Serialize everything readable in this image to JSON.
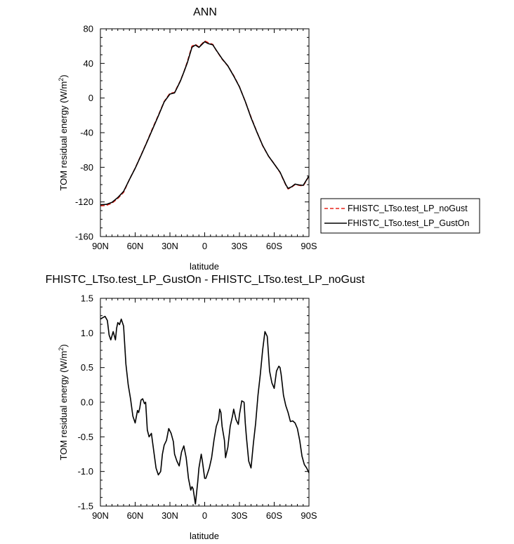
{
  "colors": {
    "noGust": "#e8251b",
    "gustOn": "#000000",
    "frame": "#000000"
  },
  "chart_data": [
    {
      "type": "line",
      "title": "ANN",
      "xlabel": "latitude",
      "ylabel": "TOM residual energy (W/m",
      "ylabel_sup": "2",
      "ylabel_close": ")",
      "xlim": [
        90,
        -90
      ],
      "ylim": [
        -160,
        80
      ],
      "x_ticks": [
        90,
        60,
        30,
        0,
        -30,
        -60,
        -90
      ],
      "x_tick_labels": [
        "90N",
        "60N",
        "30N",
        "0",
        "30S",
        "60S",
        "90S"
      ],
      "y_ticks": [
        -160,
        -120,
        -80,
        -40,
        0,
        40,
        80
      ],
      "y_tick_labels": [
        "-160",
        "-120",
        "-80",
        "-40",
        "0",
        "40",
        "80"
      ],
      "legend": {
        "position": "right",
        "entries": [
          "FHISTC_LTso.test_LP_noGust",
          "FHISTC_LTso.test_LP_GustOn"
        ]
      },
      "series": [
        {
          "name": "FHISTC_LTso.test_LP_noGust",
          "style": "dashed",
          "x": [
            90,
            85,
            80,
            75,
            70,
            65,
            60,
            55,
            50,
            45,
            40,
            35,
            30,
            26,
            24,
            21,
            18,
            15,
            11,
            8,
            5,
            0,
            -3,
            -7,
            -10,
            -15,
            -20,
            -25,
            -30,
            -35,
            -40,
            -45,
            -50,
            -55,
            -60,
            -65,
            -70,
            -72,
            -75,
            -78,
            -82,
            -85,
            -88,
            -90
          ],
          "y": [
            -124.5,
            -124,
            -121.5,
            -116,
            -109,
            -94,
            -81,
            -66,
            -51,
            -35,
            -20,
            -4,
            5.5,
            6.5,
            12,
            20,
            30,
            42,
            60,
            62,
            59,
            66,
            64,
            62,
            55,
            45,
            37,
            26,
            13,
            -4,
            -22,
            -39,
            -55,
            -67,
            -76,
            -86,
            -100.5,
            -105,
            -103,
            -100,
            -101,
            -101.5,
            -95,
            -90
          ]
        },
        {
          "name": "FHISTC_LTso.test_LP_GustOn",
          "style": "solid",
          "x": [
            90,
            85,
            80,
            75,
            70,
            65,
            60,
            55,
            50,
            45,
            40,
            35,
            30,
            26,
            24,
            21,
            18,
            15,
            11,
            8,
            5,
            0,
            -3,
            -7,
            -10,
            -15,
            -20,
            -25,
            -30,
            -35,
            -40,
            -45,
            -50,
            -55,
            -60,
            -65,
            -70,
            -72,
            -75,
            -78,
            -82,
            -85,
            -88,
            -90
          ],
          "y": [
            -123.3,
            -122.9,
            -120.4,
            -114.9,
            -107.9,
            -94.2,
            -81.2,
            -66.4,
            -51.4,
            -35.9,
            -20.6,
            -4.5,
            4.6,
            6.0,
            11.3,
            19.7,
            29.9,
            40.8,
            58.7,
            61.2,
            58.5,
            65.1,
            62.9,
            61.5,
            55.3,
            45.4,
            37.2,
            25.4,
            12.9,
            -3.9,
            -22.7,
            -39.3,
            -54.7,
            -67.0,
            -76.2,
            -85.6,
            -100.0,
            -104.4,
            -102.5,
            -99.4,
            -100.5,
            -100.9,
            -94.4,
            -90.0
          ]
        }
      ]
    },
    {
      "type": "line",
      "title": "FHISTC_LTso.test_LP_GustOn - FHISTC_LTso.test_LP_noGust",
      "xlabel": "latitude",
      "ylabel": "TOM residual energy (W/m",
      "ylabel_sup": "2",
      "ylabel_close": ")",
      "xlim": [
        90,
        -90
      ],
      "ylim": [
        -1.5,
        1.5
      ],
      "x_ticks": [
        90,
        60,
        30,
        0,
        -30,
        -60,
        -90
      ],
      "x_tick_labels": [
        "90N",
        "60N",
        "30N",
        "0",
        "30S",
        "60S",
        "90S"
      ],
      "y_ticks": [
        -1.5,
        -1.0,
        -0.5,
        0.0,
        0.5,
        1.0,
        1.5
      ],
      "y_tick_labels": [
        "-1.5",
        "-1.0",
        "-0.5",
        "0.0",
        "0.5",
        "1.0",
        "1.5"
      ],
      "series": [
        {
          "name": "FHISTC_LTso.test_LP_GustOn - FHISTC_LTso.test_LP_noGust",
          "x": [
            90,
            88,
            86,
            84,
            82.5,
            81,
            79,
            77,
            76,
            75,
            73.5,
            72,
            70,
            68,
            66,
            64,
            62,
            60,
            58,
            57,
            56,
            55,
            53.5,
            52,
            51,
            49.5,
            48,
            46,
            44,
            42,
            40,
            38,
            36.5,
            35,
            33,
            31,
            29,
            27,
            26,
            24,
            22,
            20,
            18,
            16,
            15,
            14,
            12,
            11,
            10,
            8,
            6,
            5,
            3,
            2,
            0,
            -1,
            -2,
            -4,
            -6,
            -8,
            -10,
            -12,
            -13,
            -14,
            -15,
            -17,
            -18,
            -20,
            -22,
            -24,
            -25,
            -27,
            -29,
            -30,
            -32,
            -34,
            -35,
            -36,
            -38,
            -40,
            -42,
            -44,
            -46,
            -48,
            -50,
            -52,
            -54,
            -55,
            -56,
            -58,
            -60,
            -62,
            -64,
            -65,
            -66,
            -67,
            -68,
            -70,
            -72,
            -74,
            -76,
            -78,
            -80,
            -82,
            -84,
            -86,
            -88,
            -90
          ],
          "y": [
            1.2,
            1.22,
            1.24,
            1.18,
            0.97,
            0.9,
            1.02,
            0.9,
            1.07,
            1.15,
            1.12,
            1.2,
            1.1,
            0.55,
            0.25,
            0.05,
            -0.2,
            -0.3,
            -0.12,
            -0.15,
            -0.08,
            0.03,
            0.05,
            -0.02,
            0.0,
            -0.4,
            -0.5,
            -0.45,
            -0.7,
            -0.95,
            -1.05,
            -1.0,
            -0.75,
            -0.62,
            -0.55,
            -0.38,
            -0.45,
            -0.57,
            -0.75,
            -0.85,
            -0.92,
            -0.72,
            -0.63,
            -0.8,
            -0.95,
            -1.1,
            -1.27,
            -1.22,
            -1.25,
            -1.47,
            -1.15,
            -0.95,
            -0.75,
            -0.85,
            -1.1,
            -1.1,
            -1.05,
            -0.95,
            -0.8,
            -0.55,
            -0.35,
            -0.25,
            -0.1,
            -0.15,
            -0.35,
            -0.55,
            -0.8,
            -0.65,
            -0.35,
            -0.2,
            -0.1,
            -0.25,
            -0.32,
            -0.18,
            0.02,
            0.0,
            -0.3,
            -0.5,
            -0.85,
            -0.95,
            -0.6,
            -0.3,
            0.1,
            0.4,
            0.75,
            1.02,
            0.95,
            0.7,
            0.45,
            0.28,
            0.2,
            0.45,
            0.52,
            0.5,
            0.4,
            0.25,
            0.1,
            -0.05,
            -0.15,
            -0.28,
            -0.27,
            -0.3,
            -0.38,
            -0.55,
            -0.78,
            -0.9,
            -0.95,
            -1.02
          ]
        }
      ]
    }
  ]
}
